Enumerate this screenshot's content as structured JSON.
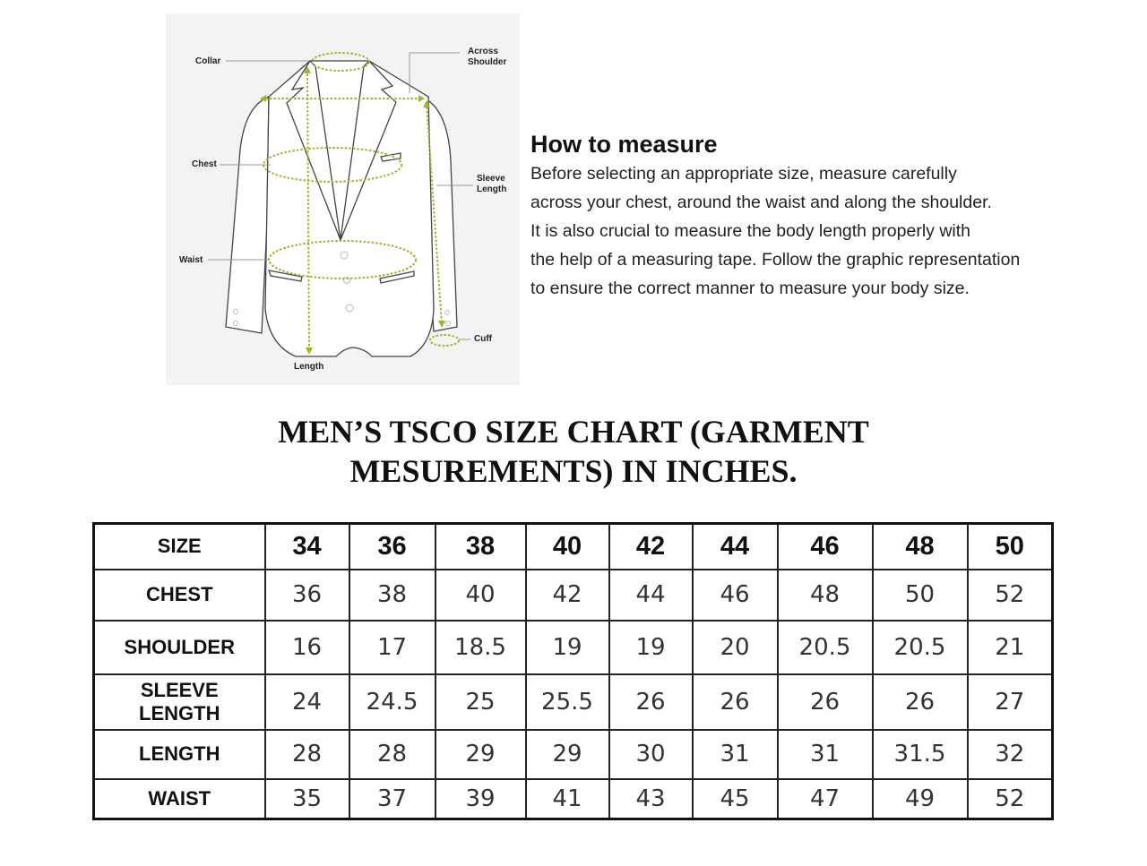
{
  "diagram": {
    "labels": {
      "collar": "Collar",
      "across_shoulder_1": "Across",
      "across_shoulder_2": "Shoulder",
      "chest": "Chest",
      "sleeve_length_1": "Sleeve",
      "sleeve_length_2": "Length",
      "waist": "Waist",
      "cuff": "Cuff",
      "length": "Length"
    },
    "measure_color": "#98b82a"
  },
  "how_to": {
    "heading": "How to measure",
    "lines": [
      "Before selecting an appropriate size, measure carefully",
      "across your chest, around the waist and along the shoulder.",
      "It is also crucial to measure the body length properly with",
      "the help of a measuring tape. Follow the graphic representation",
      "to ensure the correct manner to measure your body size."
    ]
  },
  "title": {
    "line1": "MEN’S TSCO SIZE CHART (GARMENT",
    "line2": "MESUREMENTS) IN INCHES."
  },
  "table": {
    "header_label": "SIZE",
    "sizes": [
      "34",
      "36",
      "38",
      "40",
      "42",
      "44",
      "46",
      "48",
      "50"
    ],
    "rows": [
      {
        "label": "CHEST",
        "values": [
          "36",
          "38",
          "40",
          "42",
          "44",
          "46",
          "48",
          "50",
          "52"
        ]
      },
      {
        "label": "SHOULDER",
        "values": [
          "16",
          "17",
          "18.5",
          "19",
          "19",
          "20",
          "20.5",
          "20.5",
          "21"
        ]
      },
      {
        "label": "SLEEVE LENGTH",
        "label_1": "SLEEVE",
        "label_2": "LENGTH",
        "values": [
          "24",
          "24.5",
          "25",
          "25.5",
          "26",
          "26",
          "26",
          "26",
          "27"
        ]
      },
      {
        "label": "LENGTH",
        "values": [
          "28",
          "28",
          "29",
          "29",
          "30",
          "31",
          "31",
          "31.5",
          "32"
        ]
      },
      {
        "label": "WAIST",
        "values": [
          "35",
          "37",
          "39",
          "41",
          "43",
          "45",
          "47",
          "49",
          "52"
        ]
      }
    ]
  }
}
